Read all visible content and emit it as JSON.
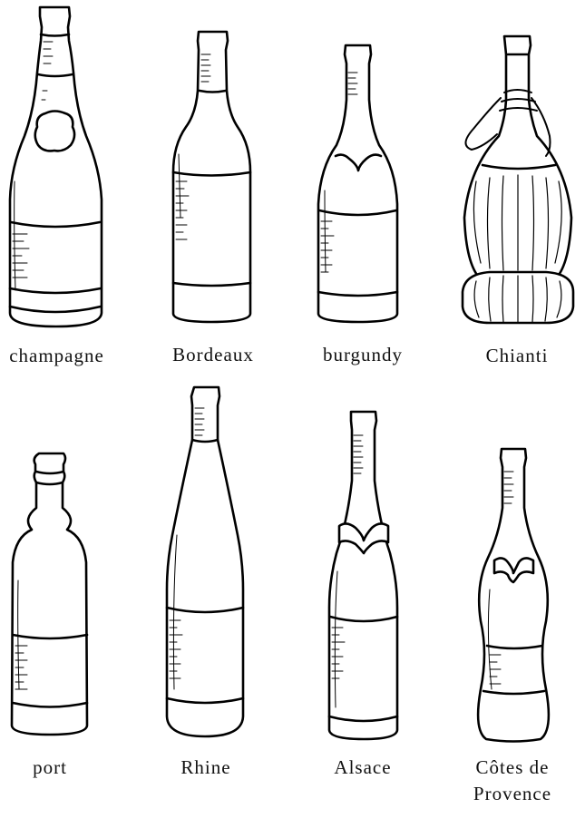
{
  "figure": {
    "bottles": [
      {
        "id": "champagne",
        "name": "champagne"
      },
      {
        "id": "bordeaux",
        "name": "Bordeaux"
      },
      {
        "id": "burgundy",
        "name": "burgundy"
      },
      {
        "id": "chianti",
        "name": "Chianti"
      },
      {
        "id": "port",
        "name": "port"
      },
      {
        "id": "rhine",
        "name": "Rhine"
      },
      {
        "id": "alsace",
        "name": "Alsace"
      },
      {
        "id": "provence",
        "name": "Côtes de",
        "name_line2": "Provence"
      }
    ]
  }
}
